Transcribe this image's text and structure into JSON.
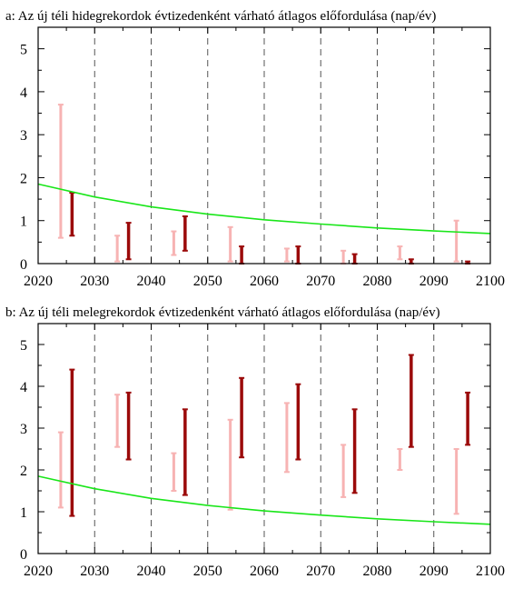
{
  "colors": {
    "light": "#f7b3b3",
    "dark": "#9b0a0a",
    "curve": "#19e619"
  },
  "chart_data": [
    {
      "type": "range",
      "title": "a: Az új téli hidegrekordok évtizedenként várható átlagos előfordulása (nap/év)",
      "xlim": [
        2020,
        2100
      ],
      "ylim": [
        0,
        5.5
      ],
      "xticks": [
        2020,
        2030,
        2040,
        2050,
        2060,
        2070,
        2080,
        2090,
        2100
      ],
      "yticks": [
        0,
        1,
        2,
        3,
        4,
        5
      ],
      "grid_x": "dashed vertical lines at decades",
      "series": [
        {
          "color": "light",
          "ranges": [
            {
              "x": 2024,
              "low": 0.6,
              "high": 3.7
            },
            {
              "x": 2034,
              "low": 0.05,
              "high": 0.65
            },
            {
              "x": 2044,
              "low": 0.2,
              "high": 0.75
            },
            {
              "x": 2054,
              "low": 0.05,
              "high": 0.85
            },
            {
              "x": 2064,
              "low": 0.05,
              "high": 0.35
            },
            {
              "x": 2074,
              "low": 0.0,
              "high": 0.3
            },
            {
              "x": 2084,
              "low": 0.1,
              "high": 0.4
            },
            {
              "x": 2094,
              "low": 0.05,
              "high": 1.0
            }
          ]
        },
        {
          "color": "dark",
          "ranges": [
            {
              "x": 2026,
              "low": 0.65,
              "high": 1.65
            },
            {
              "x": 2036,
              "low": 0.1,
              "high": 0.95
            },
            {
              "x": 2046,
              "low": 0.3,
              "high": 1.1
            },
            {
              "x": 2056,
              "low": 0.0,
              "high": 0.4
            },
            {
              "x": 2066,
              "low": 0.0,
              "high": 0.4
            },
            {
              "x": 2076,
              "low": 0.0,
              "high": 0.22
            },
            {
              "x": 2086,
              "low": 0.0,
              "high": 0.1
            },
            {
              "x": 2096,
              "low": 0.0,
              "high": 0.05
            }
          ]
        }
      ],
      "curve": {
        "color": "curve",
        "x": [
          2020,
          2030,
          2040,
          2050,
          2060,
          2070,
          2080,
          2090,
          2100
        ],
        "y": [
          1.85,
          1.55,
          1.32,
          1.15,
          1.02,
          0.92,
          0.83,
          0.76,
          0.7
        ]
      }
    },
    {
      "type": "range",
      "title": "b: Az új téli melegrekordok évtizedenként várható átlagos előfordulása (nap/év)",
      "xlim": [
        2020,
        2100
      ],
      "ylim": [
        0,
        5.5
      ],
      "xticks": [
        2020,
        2030,
        2040,
        2050,
        2060,
        2070,
        2080,
        2090,
        2100
      ],
      "yticks": [
        0,
        1,
        2,
        3,
        4,
        5
      ],
      "grid_x": "dashed vertical lines at decades",
      "series": [
        {
          "color": "light",
          "ranges": [
            {
              "x": 2024,
              "low": 1.1,
              "high": 2.9
            },
            {
              "x": 2034,
              "low": 2.55,
              "high": 3.8
            },
            {
              "x": 2044,
              "low": 1.5,
              "high": 2.4
            },
            {
              "x": 2054,
              "low": 1.05,
              "high": 3.2
            },
            {
              "x": 2064,
              "low": 1.95,
              "high": 3.6
            },
            {
              "x": 2074,
              "low": 1.35,
              "high": 2.6
            },
            {
              "x": 2084,
              "low": 2.0,
              "high": 2.5
            },
            {
              "x": 2094,
              "low": 0.95,
              "high": 2.5
            }
          ]
        },
        {
          "color": "dark",
          "ranges": [
            {
              "x": 2026,
              "low": 0.9,
              "high": 4.4
            },
            {
              "x": 2036,
              "low": 2.25,
              "high": 3.85
            },
            {
              "x": 2046,
              "low": 1.4,
              "high": 3.45
            },
            {
              "x": 2056,
              "low": 2.3,
              "high": 4.2
            },
            {
              "x": 2066,
              "low": 2.25,
              "high": 4.05
            },
            {
              "x": 2076,
              "low": 1.45,
              "high": 3.45
            },
            {
              "x": 2086,
              "low": 2.55,
              "high": 4.75
            },
            {
              "x": 2096,
              "low": 2.6,
              "high": 3.85
            }
          ]
        }
      ],
      "curve": {
        "color": "curve",
        "x": [
          2020,
          2030,
          2040,
          2050,
          2060,
          2070,
          2080,
          2090,
          2100
        ],
        "y": [
          1.85,
          1.55,
          1.32,
          1.15,
          1.02,
          0.92,
          0.83,
          0.76,
          0.7
        ]
      }
    }
  ]
}
